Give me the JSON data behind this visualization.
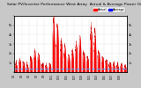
{
  "title": "Solar PV/Inverter Performance West Array  Actual & Average Power Output",
  "title_fontsize": 3.2,
  "background_color": "#c8c8c8",
  "plot_bg_color": "#ffffff",
  "fill_color": "#ff0000",
  "line_color": "#cc0000",
  "avg_line_color": "#44aaff",
  "grid_color": "#bbbbbb",
  "legend_actual_color": "#ff0000",
  "legend_avg_color": "#0000ff",
  "legend_label_actual": "Actual",
  "legend_label_avg": "Average",
  "avg_value": 350,
  "ylim": [
    0,
    6000
  ],
  "ytick_labels": [
    "",
    "1k",
    "2k",
    "3k",
    "4k",
    "5k",
    ""
  ],
  "ytick_vals": [
    0,
    1000,
    2000,
    3000,
    4000,
    5000,
    6000
  ]
}
